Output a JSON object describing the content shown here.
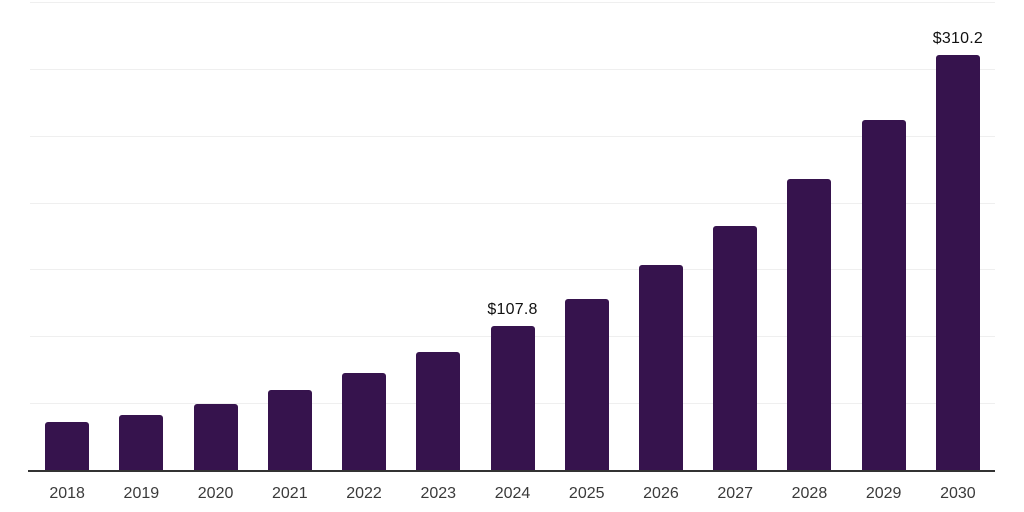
{
  "chart_data": {
    "type": "bar",
    "title": "",
    "xlabel": "",
    "ylabel": "",
    "categories": [
      "2018",
      "2019",
      "2020",
      "2021",
      "2022",
      "2023",
      "2024",
      "2025",
      "2026",
      "2027",
      "2028",
      "2029",
      "2030"
    ],
    "values": [
      36.1,
      40.9,
      49.1,
      59.8,
      72.3,
      88.5,
      107.8,
      128.0,
      153.3,
      182.5,
      217.5,
      261.5,
      310.2
    ],
    "point_labels": {
      "2024": "$107.8",
      "2030": "$310.2"
    },
    "ylim": [
      0,
      350
    ],
    "gridline_values": [
      50,
      100,
      150,
      200,
      250,
      300,
      350
    ],
    "grid": true,
    "legend": false,
    "y_tick_labels_shown": false,
    "colors": {
      "bar": "#36134d",
      "gridline": "#efefef",
      "axis_line": "#333333",
      "tick_label": "#3a3a3a",
      "value_label": "#111111",
      "background": "#ffffff"
    }
  }
}
